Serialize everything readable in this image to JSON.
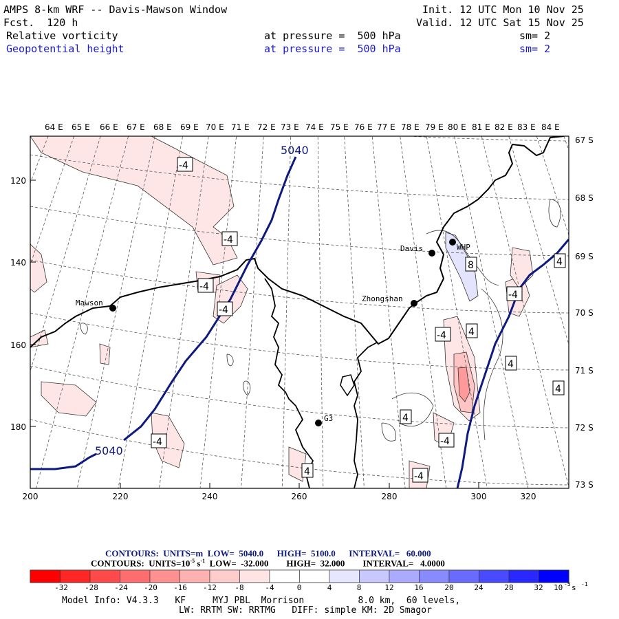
{
  "header": {
    "title": "AMPS 8-km WRF -- Davis-Mawson Window",
    "forecast": "Fcst.  120 h",
    "init": "Init. 12 UTC Mon 10 Nov 25",
    "valid": "Valid. 12 UTC Sat 15 Nov 25",
    "field1": {
      "name": "Relative vorticity",
      "level": "at pressure =  500 hPa",
      "sm": "sm= 2"
    },
    "field2": {
      "name": "Geopotential height",
      "level": "at pressure =  500 hPa",
      "sm": "sm= 2"
    }
  },
  "map": {
    "lon_labels": [
      "64 E",
      "65 E",
      "66 E",
      "67 E",
      "68 E",
      "69 E",
      "70 E",
      "71 E",
      "72 E",
      "73 E",
      "74 E",
      "75 E",
      "76 E",
      "77 E",
      "78 E",
      "79 E",
      "80 E",
      "81 E",
      "82 E",
      "83 E",
      "84 E"
    ],
    "lat_labels": [
      "67 S",
      "68 S",
      "69 S",
      "70 S",
      "71 S",
      "72 S",
      "73 S"
    ],
    "x_ticks": [
      "200",
      "220",
      "240",
      "260",
      "280",
      "300",
      "320"
    ],
    "y_ticks": [
      "120",
      "140",
      "160",
      "180"
    ],
    "stations": [
      {
        "name": "Mawson"
      },
      {
        "name": "Davis"
      },
      {
        "name": "WHP"
      },
      {
        "name": "Zhongshan"
      },
      {
        "name": "G3"
      }
    ],
    "height_labels": [
      "5040",
      "5040"
    ],
    "vort_labels": [
      "-4",
      "-4",
      "-4",
      "-4",
      "-4",
      "-4",
      "-4",
      "-4",
      "-4",
      "8",
      "4",
      "4",
      "4",
      "4",
      "4",
      "4"
    ]
  },
  "footer": {
    "contours1": {
      "prefix": "CONTOURS:  UNITS=m  LOW=  5040.0",
      "high": "HIGH=  5100.0",
      "interval": "INTERVAL=   60.000"
    },
    "contours2": {
      "prefix": "CONTOURS:  UNITS=10",
      "sup": "-5",
      "mid": " s",
      "sup2": "-1",
      "low": "  LOW=  -32.000",
      "high": "HIGH=  32.000",
      "interval": "INTERVAL=   4.0000"
    },
    "colorbar": {
      "ticks": [
        "-32",
        "-28",
        "-24",
        "-20",
        "-16",
        "-12",
        "-8",
        "-4",
        "0",
        "4",
        "8",
        "12",
        "16",
        "20",
        "24",
        "28",
        "32"
      ],
      "unit": "10",
      "unit_sup": "-5",
      "unit_tail": " s",
      "unit_sup2": "-1",
      "colors": [
        "#ff0000",
        "#ff2a2a",
        "#ff4e4e",
        "#ff7070",
        "#ff9494",
        "#ffb4b4",
        "#ffd2d2",
        "#ffeaea",
        "#ffffff",
        "#ffffff",
        "#e6e6ff",
        "#c8c8ff",
        "#a0a0ff",
        "#7878ff",
        "#5050ff",
        "#2828ff",
        "#0000ff"
      ]
    },
    "model_info_1": "Model Info: V4.3.3   KF     MYJ PBL  Morrison          8.0 km,  60 levels,",
    "model_info_2": "LW: RRTM SW: RRTMG   DIFF: simple KM: 2D Smagor"
  }
}
